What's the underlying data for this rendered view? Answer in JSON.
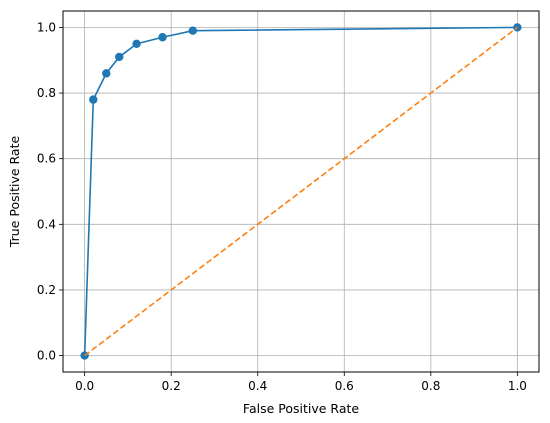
{
  "chart_data": {
    "type": "line",
    "xlabel": "False Positive Rate",
    "ylabel": "True Positive Rate",
    "xlim": [
      -0.05,
      1.05
    ],
    "ylim": [
      -0.05,
      1.05
    ],
    "grid": true,
    "x_ticks": [
      {
        "value": 0.0,
        "label": "0.0"
      },
      {
        "value": 0.2,
        "label": "0.2"
      },
      {
        "value": 0.4,
        "label": "0.4"
      },
      {
        "value": 0.6,
        "label": "0.6"
      },
      {
        "value": 0.8,
        "label": "0.8"
      },
      {
        "value": 1.0,
        "label": "1.0"
      }
    ],
    "y_ticks": [
      {
        "value": 0.0,
        "label": "0.0"
      },
      {
        "value": 0.2,
        "label": "0.2"
      },
      {
        "value": 0.4,
        "label": "0.4"
      },
      {
        "value": 0.6,
        "label": "0.6"
      },
      {
        "value": 0.8,
        "label": "0.8"
      },
      {
        "value": 1.0,
        "label": "1.0"
      }
    ],
    "series": [
      {
        "x": [
          0.0,
          0.02,
          0.05,
          0.08,
          0.12,
          0.18,
          0.25,
          1.0
        ],
        "y": [
          0.0,
          0.78,
          0.86,
          0.91,
          0.95,
          0.97,
          0.99,
          1.0
        ],
        "color": "#1f77b4",
        "style": "solid",
        "markers": true
      },
      {
        "x": [
          0.0,
          1.0
        ],
        "y": [
          0.0,
          1.0
        ],
        "color": "#ff7f0e",
        "style": "dashed",
        "markers": false
      }
    ]
  }
}
